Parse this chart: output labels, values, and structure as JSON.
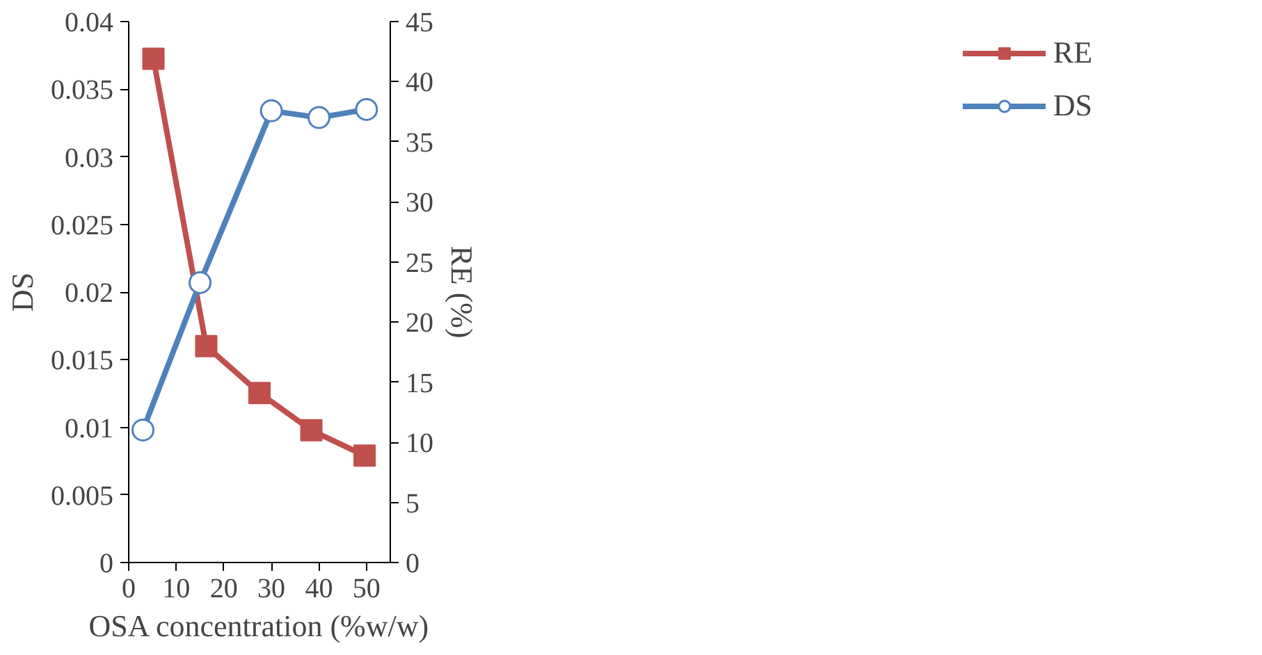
{
  "chart_data": {
    "type": "line",
    "xlabel": "OSA concentration (%w/w)",
    "ylabel": "DS",
    "y2label": "RE (%)",
    "xlim": [
      0,
      55
    ],
    "xticks": [
      0,
      10,
      20,
      30,
      40,
      50
    ],
    "ylim": [
      0,
      0.04
    ],
    "yticks": [
      0,
      0.005,
      0.01,
      0.015,
      0.02,
      0.025,
      0.03,
      0.035,
      0.04
    ],
    "y2lim": [
      0,
      45
    ],
    "y2ticks": [
      0,
      5,
      10,
      15,
      20,
      25,
      30,
      35,
      40,
      45
    ],
    "series": [
      {
        "name": "RE",
        "color": "#c0504d",
        "axis": "y2",
        "marker": "square",
        "x": [
          5.2,
          16.3,
          27.5,
          38.4,
          49.6
        ],
        "values": [
          41.9,
          18.0,
          14.1,
          11.0,
          8.9
        ]
      },
      {
        "name": "DS",
        "color": "#4f81bd",
        "marker": "circle",
        "x": [
          3,
          15,
          30,
          40,
          50
        ],
        "values": [
          0.0098,
          0.0207,
          0.0334,
          0.0329,
          0.0335
        ]
      }
    ],
    "grid": false,
    "legend": "top right",
    "line_style": "solid"
  }
}
